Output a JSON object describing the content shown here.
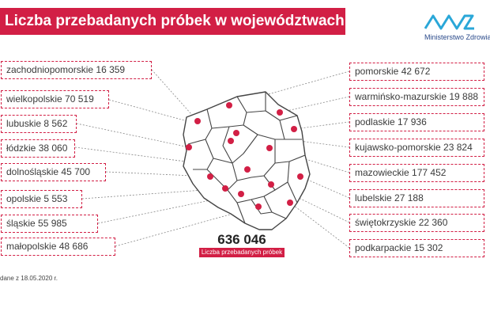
{
  "header": {
    "title": "Liczba przebadanych próbek w województwach"
  },
  "logo": {
    "text": "Ministerstwo Zdrowia",
    "icon": "ministry-logo-icon"
  },
  "colors": {
    "accent": "#d21f45",
    "map_stroke": "#444444"
  },
  "left_regions": [
    {
      "name": "zachodniopomorskie",
      "value": "16 359"
    },
    {
      "name": "wielkopolskie",
      "value": "70 519"
    },
    {
      "name": "lubuskie",
      "value": "8 562"
    },
    {
      "name": "łódzkie",
      "value": "38 060"
    },
    {
      "name": "dolnośląskie",
      "value": "45 700"
    },
    {
      "name": "opolskie",
      "value": "5 553"
    },
    {
      "name": "śląskie",
      "value": "55 985"
    },
    {
      "name": "małopolskie",
      "value": "48 686"
    }
  ],
  "right_regions": [
    {
      "name": "pomorskie",
      "value": "42 672"
    },
    {
      "name": "warmińsko-mazurskie",
      "value": "19 888"
    },
    {
      "name": "podlaskie",
      "value": "17 936"
    },
    {
      "name": "kujawsko-pomorskie",
      "value": "23 824"
    },
    {
      "name": "mazowieckie",
      "value": "177 452"
    },
    {
      "name": "lubelskie",
      "value": "27 188"
    },
    {
      "name": "świętokrzyskie",
      "value": "22 360"
    },
    {
      "name": "podkarpackie",
      "value": "15 302"
    }
  ],
  "total": {
    "value": "636 046",
    "label": "Liczba przebadanych próbek"
  },
  "footnote": "dane z 18.05.2020 r."
}
